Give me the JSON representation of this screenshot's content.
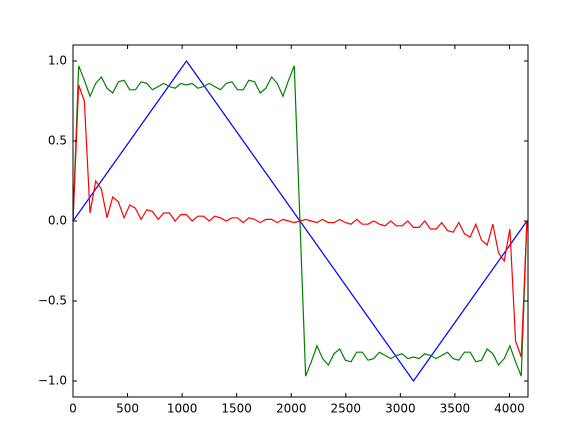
{
  "chart_data": {
    "type": "line",
    "x": [
      0,
      52,
      104,
      156,
      208,
      260,
      312,
      364,
      416,
      468,
      520,
      572,
      624,
      676,
      728,
      780,
      832,
      884,
      936,
      988,
      1040,
      1092,
      1144,
      1196,
      1248,
      1300,
      1352,
      1404,
      1456,
      1508,
      1560,
      1612,
      1664,
      1716,
      1768,
      1820,
      1872,
      1924,
      1976,
      2028,
      2080,
      2132,
      2184,
      2236,
      2288,
      2340,
      2392,
      2444,
      2496,
      2548,
      2600,
      2652,
      2704,
      2756,
      2808,
      2860,
      2912,
      2964,
      3016,
      3068,
      3120,
      3172,
      3224,
      3276,
      3328,
      3380,
      3432,
      3484,
      3536,
      3588,
      3640,
      3692,
      3744,
      3796,
      3848,
      3900,
      3952,
      4004,
      4056,
      4108,
      4160
    ],
    "series": [
      {
        "color": "#0000ff",
        "values": [
          0,
          0.05,
          0.1,
          0.15,
          0.2,
          0.25,
          0.3,
          0.35,
          0.4,
          0.45,
          0.5,
          0.55,
          0.6,
          0.65,
          0.7,
          0.75,
          0.8,
          0.85,
          0.9,
          0.95,
          1,
          0.95,
          0.9,
          0.85,
          0.8,
          0.75,
          0.7,
          0.65,
          0.6,
          0.55,
          0.5,
          0.45,
          0.4,
          0.35,
          0.3,
          0.25,
          0.2,
          0.15,
          0.1,
          0.05,
          0,
          -0.05,
          -0.1,
          -0.15,
          -0.2,
          -0.25,
          -0.3,
          -0.35,
          -0.4,
          -0.45,
          -0.5,
          -0.55,
          -0.6,
          -0.65,
          -0.7,
          -0.75,
          -0.8,
          -0.85,
          -0.9,
          -0.95,
          -1,
          -0.95,
          -0.9,
          -0.85,
          -0.8,
          -0.75,
          -0.7,
          -0.65,
          -0.6,
          -0.55,
          -0.5,
          -0.45,
          -0.4,
          -0.35,
          -0.3,
          -0.25,
          -0.2,
          -0.15,
          -0.1,
          -0.05,
          0
        ]
      },
      {
        "color": "#008000",
        "values": [
          0,
          0.97,
          0.88,
          0.78,
          0.86,
          0.9,
          0.83,
          0.8,
          0.87,
          0.88,
          0.82,
          0.82,
          0.87,
          0.86,
          0.82,
          0.84,
          0.86,
          0.84,
          0.83,
          0.86,
          0.85,
          0.86,
          0.83,
          0.84,
          0.86,
          0.84,
          0.82,
          0.86,
          0.87,
          0.82,
          0.82,
          0.88,
          0.87,
          0.8,
          0.83,
          0.9,
          0.86,
          0.78,
          0.88,
          0.97,
          0,
          -0.97,
          -0.88,
          -0.78,
          -0.86,
          -0.9,
          -0.83,
          -0.8,
          -0.87,
          -0.88,
          -0.82,
          -0.82,
          -0.87,
          -0.86,
          -0.82,
          -0.84,
          -0.86,
          -0.84,
          -0.83,
          -0.86,
          -0.85,
          -0.86,
          -0.83,
          -0.84,
          -0.86,
          -0.84,
          -0.82,
          -0.86,
          -0.87,
          -0.82,
          -0.82,
          -0.88,
          -0.87,
          -0.8,
          -0.83,
          -0.9,
          -0.86,
          -0.78,
          -0.88,
          -0.97,
          0
        ]
      },
      {
        "color": "#ff0000",
        "values": [
          0,
          0.85,
          0.75,
          0.05,
          0.25,
          0.2,
          0.02,
          0.15,
          0.12,
          0.02,
          0.1,
          0.08,
          0.01,
          0.07,
          0.06,
          0.01,
          0.05,
          0.05,
          0,
          0.04,
          0.04,
          0,
          0.03,
          0.03,
          0,
          0.03,
          0.02,
          0,
          0.02,
          0.02,
          -0.01,
          0.02,
          0.01,
          -0.01,
          0.01,
          0.01,
          -0.01,
          0.01,
          0,
          -0.01,
          0,
          0.01,
          0,
          -0.01,
          0.01,
          -0.01,
          -0.01,
          0.01,
          -0.01,
          -0.02,
          0.01,
          -0.02,
          -0.02,
          0,
          -0.02,
          -0.03,
          0,
          -0.03,
          -0.03,
          0,
          -0.04,
          -0.04,
          0,
          -0.05,
          -0.05,
          -0.01,
          -0.06,
          -0.07,
          -0.01,
          -0.08,
          -0.1,
          -0.02,
          -0.12,
          -0.15,
          -0.02,
          -0.2,
          -0.25,
          -0.05,
          -0.75,
          -0.85,
          0
        ]
      }
    ],
    "xlim": [
      0,
      4170
    ],
    "ylim": [
      -1.1,
      1.1
    ],
    "xticks": [
      0,
      500,
      1000,
      1500,
      2000,
      2500,
      3000,
      3500,
      4000
    ],
    "yticks": [
      {
        "value": -1,
        "label": "−1.0"
      },
      {
        "value": -0.5,
        "label": "−0.5"
      },
      {
        "value": 0,
        "label": "0.0"
      },
      0.5,
      {
        "value": 1,
        "label": "1.0"
      }
    ]
  }
}
